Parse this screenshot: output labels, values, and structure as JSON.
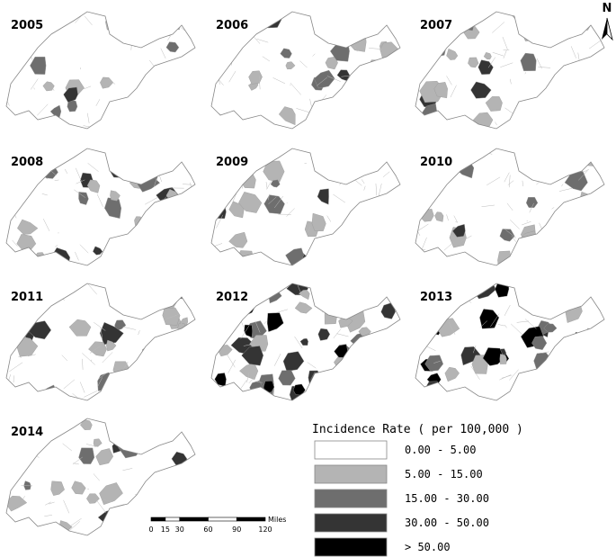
{
  "maps": [
    {
      "year": "2005"
    },
    {
      "year": "2006"
    },
    {
      "year": "2007"
    },
    {
      "year": "2008"
    },
    {
      "year": "2009"
    },
    {
      "year": "2010"
    },
    {
      "year": "2011"
    },
    {
      "year": "2012"
    },
    {
      "year": "2013"
    },
    {
      "year": "2014"
    }
  ],
  "legend": {
    "title": "Incidence Rate ( per 100,000 )",
    "items": [
      {
        "label": "0.00 - 5.00",
        "color": "#ffffff"
      },
      {
        "label": "5.00 - 15.00",
        "color": "#b4b4b4"
      },
      {
        "label": "15.00 - 30.00",
        "color": "#6e6e6e"
      },
      {
        "label": "30.00 - 50.00",
        "color": "#343434"
      },
      {
        "label": "> 50.00",
        "color": "#000000"
      }
    ]
  },
  "scale_bar": {
    "unit": "Miles",
    "ticks": [
      0,
      15,
      30,
      60,
      90,
      120
    ]
  },
  "north": "N"
}
